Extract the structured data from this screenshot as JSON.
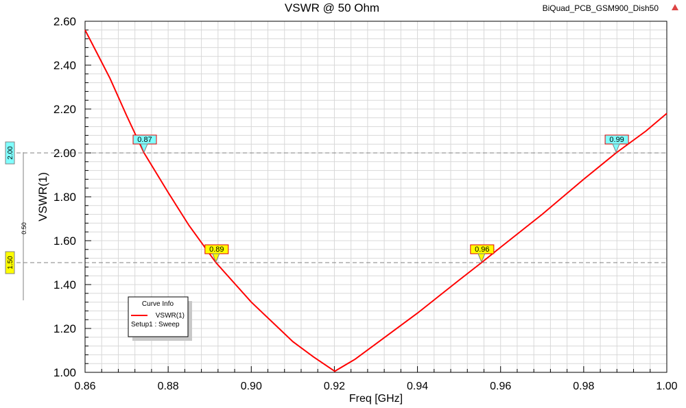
{
  "chart_data": {
    "type": "line",
    "title": "VSWR @ 50 Ohm",
    "project_label": "BiQuad_PCB_GSM900_Dish50",
    "xlabel": "Freq [GHz]",
    "ylabel": "VSWR(1)",
    "xlim": [
      0.86,
      1.0
    ],
    "ylim": [
      1.0,
      2.6
    ],
    "xticks": [
      "0.86",
      "0.88",
      "0.90",
      "0.92",
      "0.94",
      "0.96",
      "0.98",
      "1.00"
    ],
    "yticks": [
      "1.00",
      "1.20",
      "1.40",
      "1.60",
      "1.80",
      "2.00",
      "2.20",
      "2.40",
      "2.60"
    ],
    "grid": true,
    "series": [
      {
        "name": "VSWR(1)",
        "color": "#ff0000",
        "x": [
          0.86,
          0.863,
          0.866,
          0.87,
          0.8742,
          0.88,
          0.885,
          0.8915,
          0.9,
          0.905,
          0.91,
          0.915,
          0.9201,
          0.925,
          0.93,
          0.94,
          0.95,
          0.9554,
          0.96,
          0.97,
          0.98,
          0.9878,
          0.995,
          1.0
        ],
        "y": [
          2.56,
          2.45,
          2.34,
          2.17,
          2.0,
          1.82,
          1.67,
          1.5,
          1.32,
          1.23,
          1.14,
          1.07,
          1.005,
          1.06,
          1.13,
          1.27,
          1.42,
          1.5,
          1.57,
          1.72,
          1.88,
          2.0,
          2.1,
          2.18
        ]
      }
    ],
    "markers": [
      {
        "label": "0.87",
        "x": 0.8742,
        "y": 2.0,
        "color": "#80ffff"
      },
      {
        "label": "0.89",
        "x": 0.8915,
        "y": 1.5,
        "color": "#ffff00"
      },
      {
        "label": "0.96",
        "x": 0.9554,
        "y": 1.5,
        "color": "#ffff00"
      },
      {
        "label": "0.99",
        "x": 0.9878,
        "y": 2.0,
        "color": "#80ffff"
      }
    ],
    "reference_lines": [
      {
        "label": "2.00",
        "y": 2.0,
        "color": "#80ffff"
      },
      {
        "label": "1.50",
        "y": 1.5,
        "color": "#ffff00"
      }
    ],
    "delta_label": "0.50",
    "legend": {
      "title": "Curve Info",
      "entry": "VSWR(1)",
      "sub": "Setup1 : Sweep",
      "placement": "bottom-left"
    }
  }
}
